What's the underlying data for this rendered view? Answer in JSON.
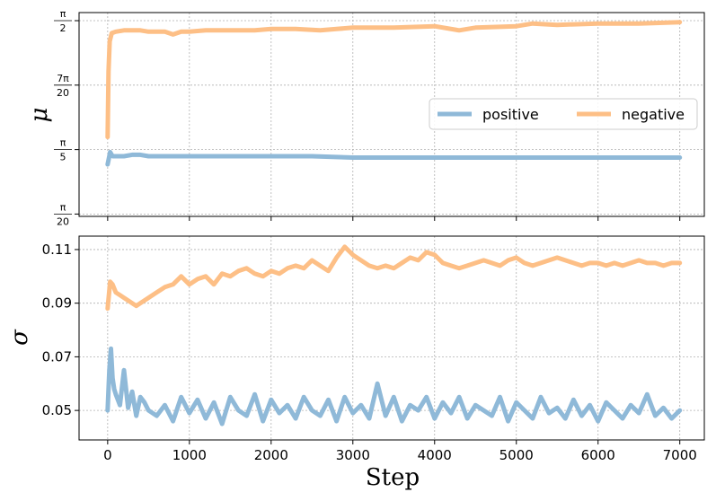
{
  "chart_data": [
    {
      "type": "line",
      "panel": "top",
      "ylabel": "μ",
      "xlabel": "",
      "xlim": [
        -350,
        7300
      ],
      "ylim": [
        0.14,
        1.63
      ],
      "xticks": [
        0,
        1000,
        2000,
        3000,
        4000,
        5000,
        6000,
        7000
      ],
      "xtick_labels_visible": false,
      "yticks": [
        {
          "value": 0.1571,
          "num": "π",
          "den": "20"
        },
        {
          "value": 0.6283,
          "num": "π",
          "den": "5"
        },
        {
          "value": 1.0996,
          "num": "7π",
          "den": "20"
        },
        {
          "value": 1.5708,
          "num": "π",
          "den": "2"
        }
      ],
      "grid": true,
      "legend": {
        "placement": "center-right",
        "ncol": 2
      },
      "series": [
        {
          "name": "positive",
          "color": "#8fb9d8",
          "x": [
            0,
            30,
            60,
            100,
            200,
            300,
            400,
            500,
            700,
            900,
            1200,
            1500,
            2000,
            2500,
            3000,
            3500,
            4000,
            4500,
            5000,
            5500,
            6000,
            6500,
            7000
          ],
          "y": [
            0.52,
            0.61,
            0.58,
            0.58,
            0.58,
            0.59,
            0.59,
            0.58,
            0.58,
            0.58,
            0.58,
            0.58,
            0.58,
            0.58,
            0.57,
            0.57,
            0.57,
            0.57,
            0.57,
            0.57,
            0.57,
            0.57,
            0.57
          ]
        },
        {
          "name": "negative",
          "color": "#fdbf86",
          "x": [
            0,
            10,
            25,
            50,
            100,
            200,
            300,
            400,
            500,
            700,
            800,
            900,
            1000,
            1200,
            1500,
            1800,
            2000,
            2300,
            2600,
            2800,
            3000,
            3500,
            4000,
            4300,
            4500,
            5000,
            5200,
            5500,
            6000,
            6500,
            7000
          ],
          "y": [
            0.72,
            1.2,
            1.42,
            1.48,
            1.49,
            1.5,
            1.5,
            1.5,
            1.49,
            1.49,
            1.47,
            1.49,
            1.49,
            1.5,
            1.5,
            1.5,
            1.51,
            1.51,
            1.5,
            1.51,
            1.52,
            1.52,
            1.53,
            1.5,
            1.52,
            1.53,
            1.55,
            1.54,
            1.55,
            1.55,
            1.56
          ]
        }
      ]
    },
    {
      "type": "line",
      "panel": "bottom",
      "ylabel": "σ",
      "xlabel": "Step",
      "xlim": [
        -350,
        7300
      ],
      "ylim": [
        0.039,
        0.115
      ],
      "xticks": [
        0,
        1000,
        2000,
        3000,
        4000,
        5000,
        6000,
        7000
      ],
      "xtick_labels": [
        "0",
        "1000",
        "2000",
        "3000",
        "4000",
        "5000",
        "6000",
        "7000"
      ],
      "yticks": [
        0.05,
        0.07,
        0.09,
        0.11
      ],
      "ytick_labels": [
        "0.05",
        "0.07",
        "0.09",
        "0.11"
      ],
      "grid": true,
      "series": [
        {
          "name": "positive",
          "color": "#8fb9d8",
          "x": [
            0,
            20,
            40,
            60,
            80,
            100,
            150,
            200,
            250,
            300,
            350,
            400,
            450,
            500,
            600,
            700,
            800,
            900,
            1000,
            1100,
            1200,
            1300,
            1400,
            1500,
            1600,
            1700,
            1800,
            1900,
            2000,
            2100,
            2200,
            2300,
            2400,
            2500,
            2600,
            2700,
            2800,
            2900,
            3000,
            3100,
            3200,
            3300,
            3400,
            3500,
            3600,
            3700,
            3800,
            3900,
            4000,
            4100,
            4200,
            4300,
            4400,
            4500,
            4600,
            4700,
            4800,
            4900,
            5000,
            5100,
            5200,
            5300,
            5400,
            5500,
            5600,
            5700,
            5800,
            5900,
            6000,
            6100,
            6200,
            6300,
            6400,
            6500,
            6600,
            6700,
            6800,
            6900,
            7000
          ],
          "y": [
            0.05,
            0.065,
            0.073,
            0.062,
            0.058,
            0.056,
            0.052,
            0.065,
            0.051,
            0.057,
            0.048,
            0.055,
            0.053,
            0.05,
            0.048,
            0.052,
            0.046,
            0.055,
            0.049,
            0.054,
            0.047,
            0.053,
            0.045,
            0.055,
            0.05,
            0.048,
            0.056,
            0.046,
            0.054,
            0.049,
            0.052,
            0.047,
            0.055,
            0.05,
            0.048,
            0.054,
            0.046,
            0.055,
            0.049,
            0.052,
            0.047,
            0.06,
            0.048,
            0.055,
            0.046,
            0.052,
            0.05,
            0.055,
            0.047,
            0.053,
            0.049,
            0.055,
            0.047,
            0.052,
            0.05,
            0.048,
            0.055,
            0.046,
            0.053,
            0.05,
            0.047,
            0.055,
            0.049,
            0.051,
            0.047,
            0.054,
            0.048,
            0.052,
            0.046,
            0.053,
            0.05,
            0.047,
            0.052,
            0.049,
            0.056,
            0.048,
            0.051,
            0.047,
            0.05
          ]
        },
        {
          "name": "negative",
          "color": "#fdbf86",
          "x": [
            0,
            30,
            60,
            100,
            150,
            200,
            250,
            300,
            350,
            400,
            500,
            600,
            700,
            800,
            900,
            1000,
            1100,
            1200,
            1300,
            1400,
            1500,
            1600,
            1700,
            1800,
            1900,
            2000,
            2100,
            2200,
            2300,
            2400,
            2500,
            2600,
            2700,
            2800,
            2900,
            3000,
            3100,
            3200,
            3300,
            3400,
            3500,
            3600,
            3700,
            3800,
            3900,
            4000,
            4100,
            4200,
            4300,
            4400,
            4500,
            4600,
            4700,
            4800,
            4900,
            5000,
            5100,
            5200,
            5300,
            5400,
            5500,
            5600,
            5700,
            5800,
            5900,
            6000,
            6100,
            6200,
            6300,
            6400,
            6500,
            6600,
            6700,
            6800,
            6900,
            7000
          ],
          "y": [
            0.088,
            0.098,
            0.097,
            0.094,
            0.093,
            0.092,
            0.091,
            0.09,
            0.089,
            0.09,
            0.092,
            0.094,
            0.096,
            0.097,
            0.1,
            0.097,
            0.099,
            0.1,
            0.097,
            0.101,
            0.1,
            0.102,
            0.103,
            0.101,
            0.1,
            0.102,
            0.101,
            0.103,
            0.104,
            0.103,
            0.106,
            0.104,
            0.102,
            0.107,
            0.111,
            0.108,
            0.106,
            0.104,
            0.103,
            0.104,
            0.103,
            0.105,
            0.107,
            0.106,
            0.109,
            0.108,
            0.105,
            0.104,
            0.103,
            0.104,
            0.105,
            0.106,
            0.105,
            0.104,
            0.106,
            0.107,
            0.105,
            0.104,
            0.105,
            0.106,
            0.107,
            0.106,
            0.105,
            0.104,
            0.105,
            0.105,
            0.104,
            0.105,
            0.104,
            0.105,
            0.106,
            0.105,
            0.105,
            0.104,
            0.105,
            0.105
          ]
        }
      ]
    }
  ]
}
